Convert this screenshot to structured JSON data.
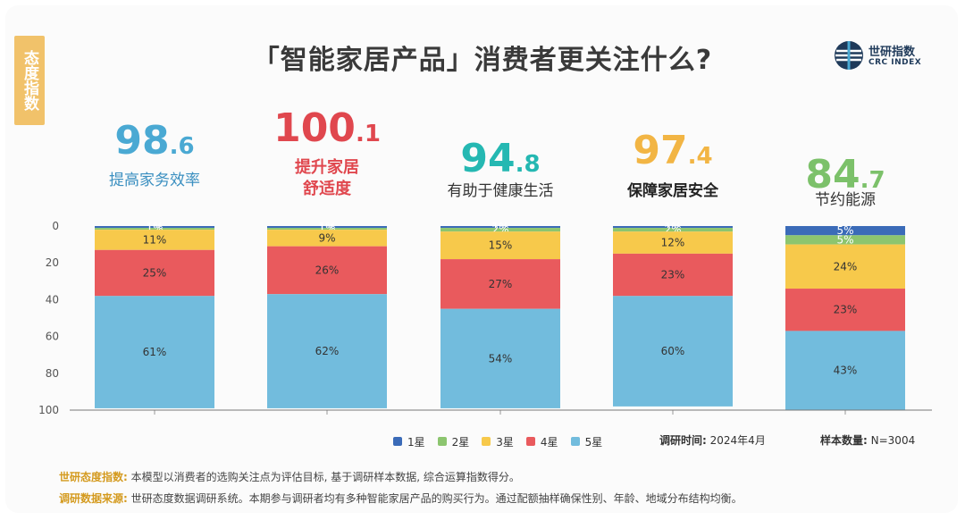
{
  "side_tag": "态度指数",
  "title": "「智能家居产品」消费者更关注什么?",
  "logo": {
    "cn": "世研指数",
    "en": "CRC INDEX"
  },
  "scores": [
    {
      "int": "98",
      "dec": ".6",
      "color": "#4aa9d3",
      "label_lines": [
        "提高家务效率"
      ],
      "label_color": "#3a8fc0"
    },
    {
      "int": "100",
      "dec": ".1",
      "color": "#e0474e",
      "label_lines": [
        "提升家居",
        "舒适度"
      ],
      "label_color": "#e0474e"
    },
    {
      "int": "94",
      "dec": ".8",
      "color": "#25b8b2",
      "label_lines": [
        "有助于健康生活"
      ],
      "label_color": "#333333"
    },
    {
      "int": "97",
      "dec": ".4",
      "color": "#f2b544",
      "label_lines": [
        "保障家居安全"
      ],
      "label_color": "#222222"
    },
    {
      "int": "84",
      "dec": ".7",
      "color": "#7cc16a",
      "label_lines": [
        "节约能源"
      ],
      "label_color": "#333333"
    }
  ],
  "chart_data": {
    "type": "bar",
    "stacked": true,
    "categories": [
      "提高家务效率",
      "提升家居舒适度",
      "有助于健康生活",
      "保障家居安全",
      "节约能源"
    ],
    "ylim": [
      0,
      100
    ],
    "y_inverted": true,
    "y_ticks": [
      0,
      20,
      40,
      60,
      80,
      100
    ],
    "series": [
      {
        "name": "1星",
        "color": "#3b6bb8",
        "values": [
          1,
          1,
          1,
          1,
          5
        ],
        "labels": [
          "1%",
          "1%",
          "1%",
          "1%",
          "5%"
        ]
      },
      {
        "name": "2星",
        "color": "#8cc56f",
        "values": [
          1,
          1,
          2,
          2,
          5
        ],
        "labels": [
          "1%",
          "1%",
          "2%",
          "2%",
          "5%"
        ]
      },
      {
        "name": "3星",
        "color": "#f7c94b",
        "values": [
          11,
          9,
          15,
          12,
          24
        ],
        "labels": [
          "11%",
          "9%",
          "15%",
          "12%",
          "24%"
        ]
      },
      {
        "name": "4星",
        "color": "#e95a5d",
        "values": [
          25,
          26,
          27,
          23,
          23
        ],
        "labels": [
          "25%",
          "26%",
          "27%",
          "23%",
          "23%"
        ]
      },
      {
        "name": "5星",
        "color": "#72bcdd",
        "values": [
          61,
          62,
          54,
          60,
          43
        ],
        "labels": [
          "61%",
          "62%",
          "54%",
          "60%",
          "43%"
        ]
      }
    ]
  },
  "survey_time": {
    "label": "调研时间:",
    "value": "2024年4月"
  },
  "sample": {
    "label": "样本数量:",
    "value": "N=3004"
  },
  "notes": [
    {
      "key": "世研态度指数:",
      "text": "本模型以消费者的选购关注点为评估目标, 基于调研样本数据, 综合运算指数得分。"
    },
    {
      "key": "调研数据来源:",
      "text": "世研态度数据调研系统。本期参与调研者均有多种智能家居产品的购买行为。通过配额抽样确保性别、年龄、地域分布结构均衡。"
    }
  ]
}
